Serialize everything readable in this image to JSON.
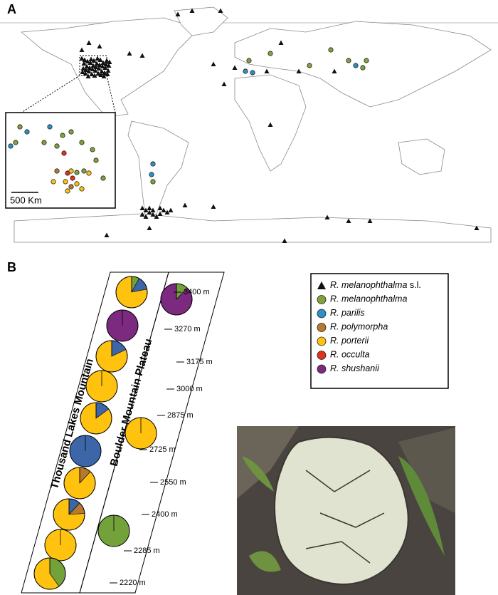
{
  "panel_a": {
    "label": "A",
    "scale_label": "500 Km"
  },
  "panel_b": {
    "label": "B",
    "transects": [
      "Thousand Lakes Mountain",
      "Boulder Mountain Plateau"
    ],
    "elevations": [
      "3400 m",
      "3270 m",
      "3175 m",
      "3000 m",
      "2875 m",
      "2725 m",
      "2550 m",
      "2400 m",
      "2285 m",
      "2220 m"
    ],
    "legend": [
      {
        "name": "R. melanophthalma",
        "suffix": "s.l.",
        "color": "#111111"
      },
      {
        "name": "R. melanophthalma",
        "color": "#7fa33a"
      },
      {
        "name": "R. parilis",
        "color": "#2d8fc4"
      },
      {
        "name": "R. polymorpha",
        "color": "#b8792c"
      },
      {
        "name": "R. porterii",
        "color": "#ffc20e"
      },
      {
        "name": "R. occulta",
        "color": "#e0301e"
      },
      {
        "name": "R. shushanii",
        "color": "#7b2a80"
      }
    ],
    "pie_colors": [
      "#74a23a",
      "#3d66a8",
      "#b8792c",
      "#ffc20e",
      "#e0301e",
      "#7b2a80"
    ],
    "pies": [
      {
        "values": [
          8,
          14,
          0,
          78,
          0,
          0
        ]
      },
      {
        "values": [
          0,
          0,
          0,
          0,
          0,
          100
        ]
      },
      {
        "values": [
          0,
          18,
          0,
          82,
          0,
          0
        ]
      },
      {
        "values": [
          0,
          0,
          0,
          100,
          0,
          0
        ]
      },
      {
        "values": [
          0,
          15,
          0,
          85,
          0,
          0
        ]
      },
      {
        "values": [
          0,
          100,
          0,
          0,
          0,
          0
        ]
      },
      {
        "values": [
          0,
          0,
          12,
          88,
          0,
          0
        ]
      },
      {
        "values": [
          0,
          12,
          12,
          76,
          0,
          0
        ]
      },
      {
        "values": [
          0,
          0,
          0,
          100,
          0,
          0
        ]
      },
      {
        "values": [
          40,
          0,
          0,
          60,
          0,
          0
        ]
      },
      {
        "values": [
          12,
          0,
          0,
          0,
          0,
          88
        ]
      },
      {
        "values": [
          0,
          0,
          0,
          100,
          0,
          0
        ]
      },
      {
        "values": [
          100,
          0,
          0,
          0,
          0,
          0
        ]
      }
    ]
  }
}
